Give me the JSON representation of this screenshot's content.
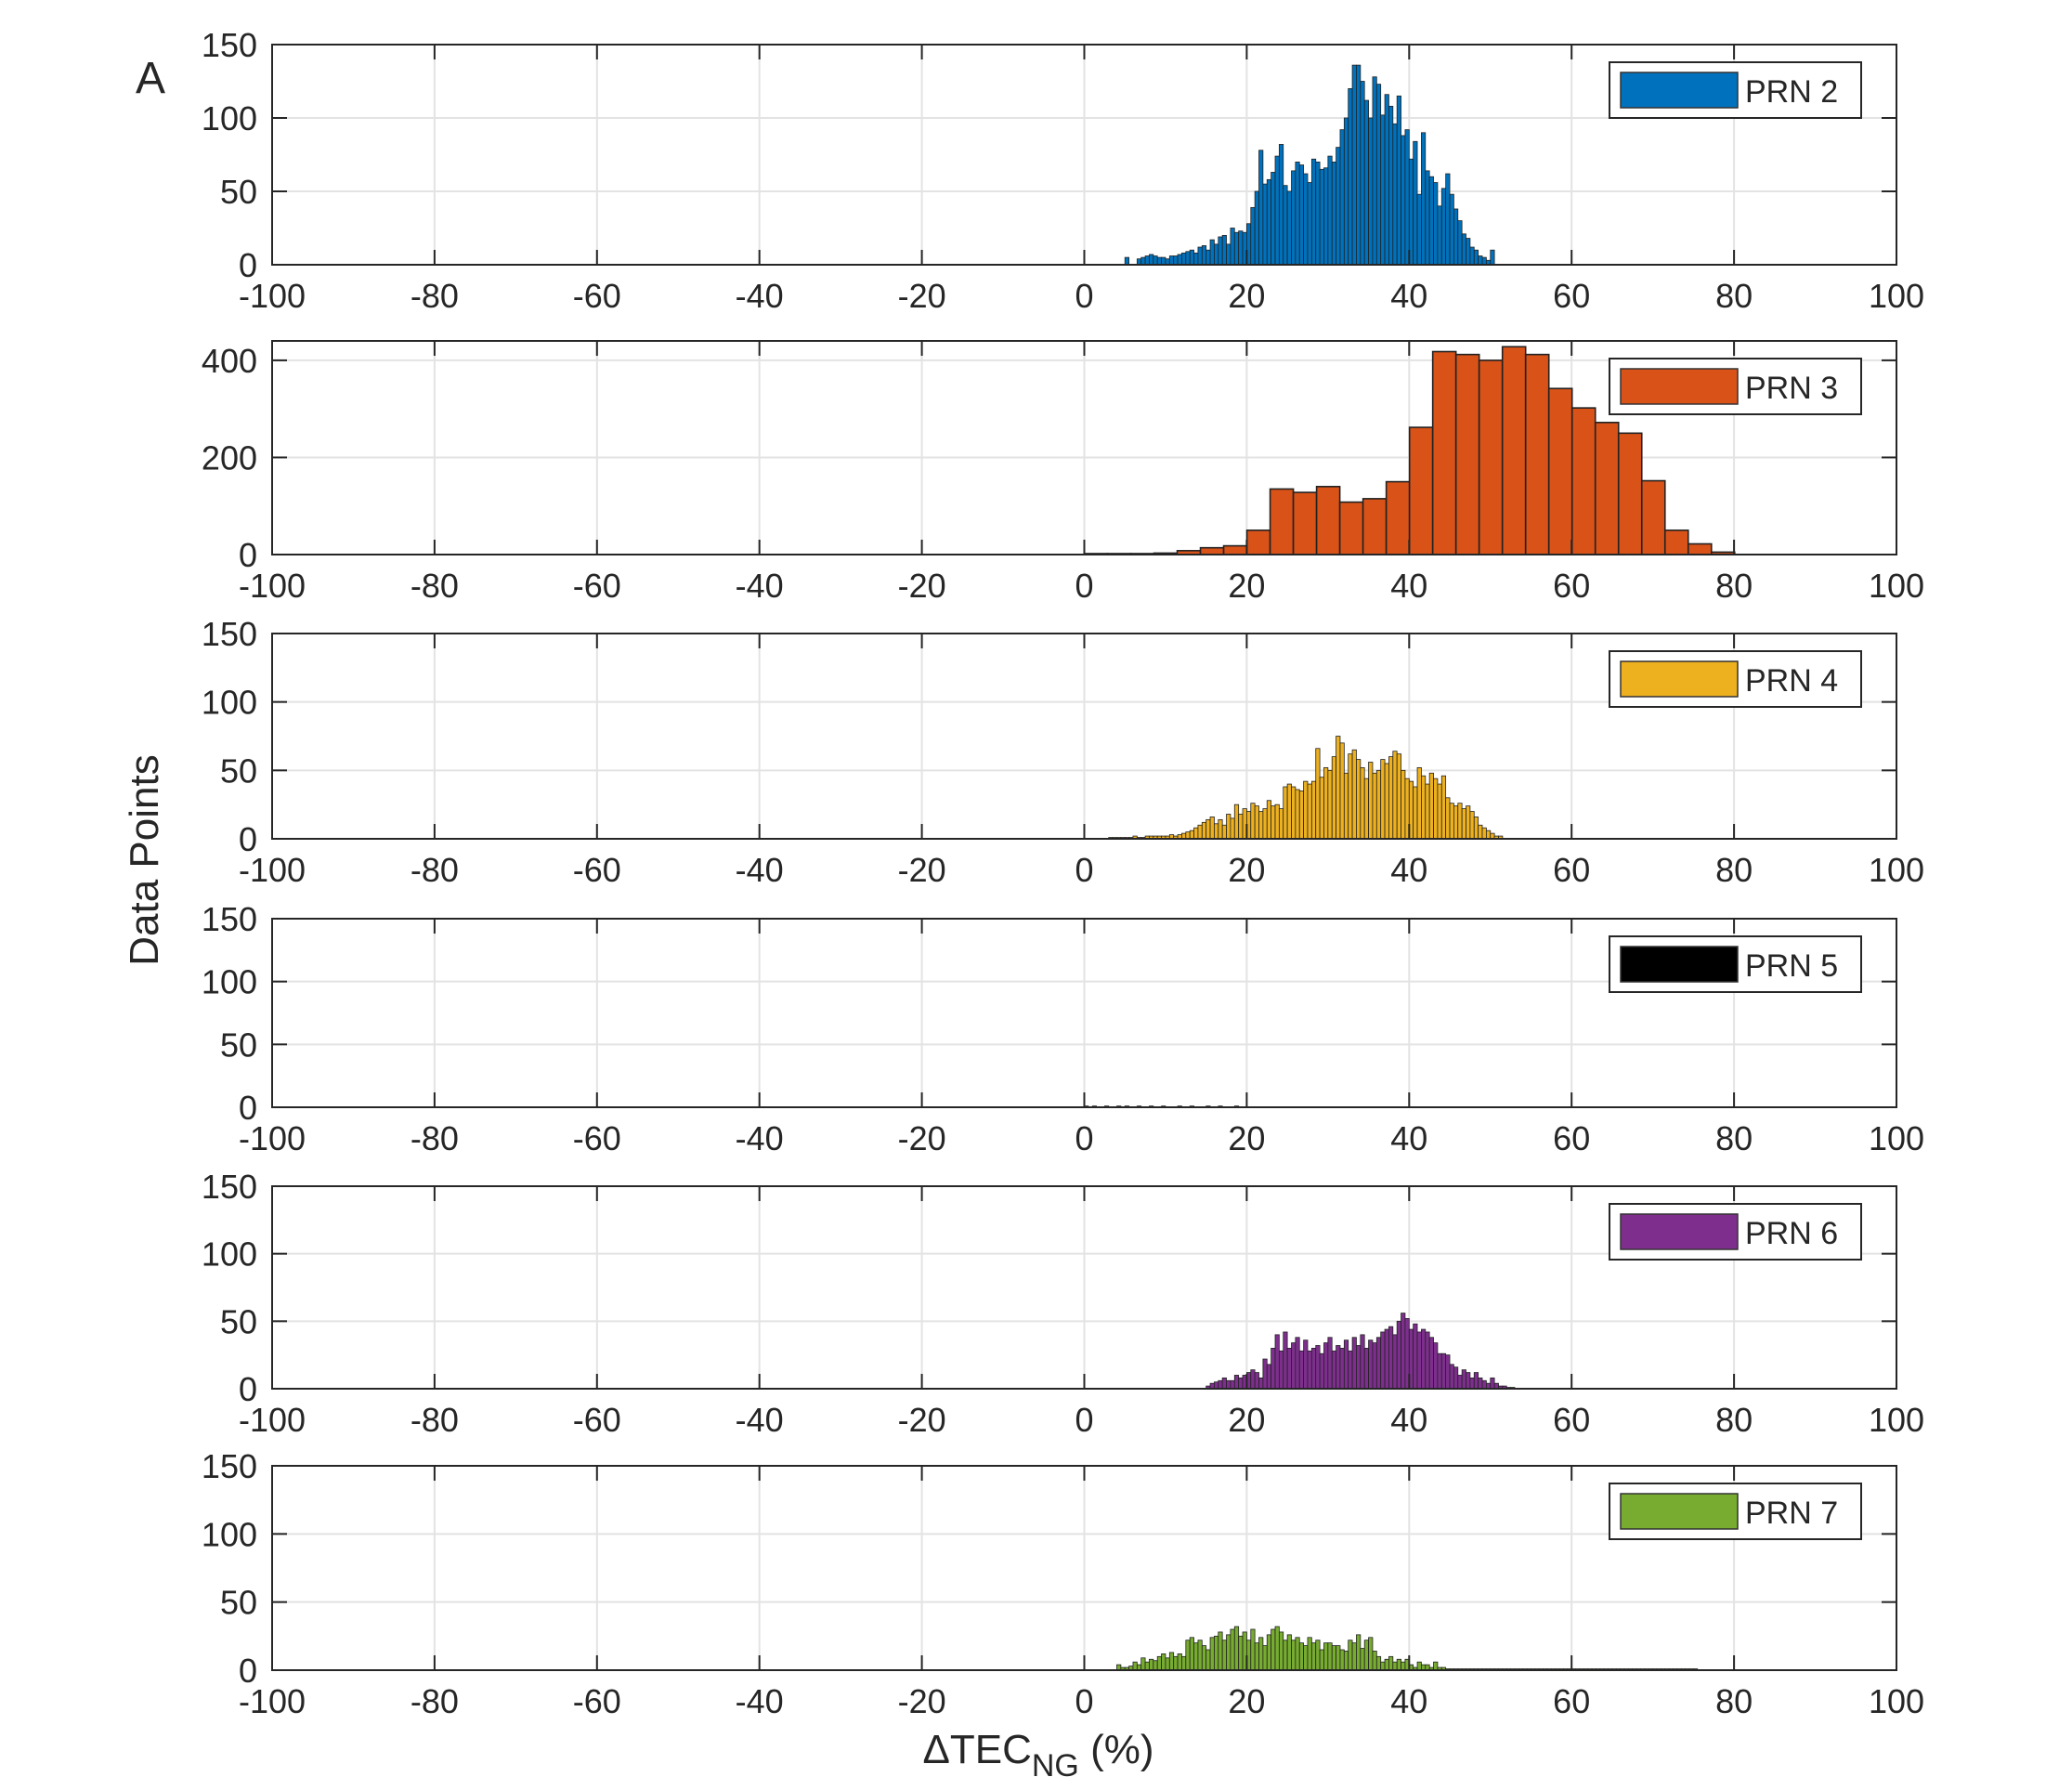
{
  "figure": {
    "panel_label": "A",
    "ylabel": "Data Points",
    "xlabel_main": "ΔTEC",
    "xlabel_sub": "NG",
    "xlabel_unit": " (%)"
  },
  "chart_data": [
    {
      "type": "bar",
      "series_name": "PRN 2",
      "color": "#0072BD",
      "xlim": [
        -100,
        100
      ],
      "ylim": [
        0,
        150
      ],
      "xticks": [
        -100,
        -80,
        -60,
        -40,
        -20,
        0,
        20,
        40,
        60,
        80,
        100
      ],
      "yticks": [
        0,
        50,
        100,
        150
      ],
      "grid": true,
      "legend": "top-right",
      "bin_start": 5,
      "bin_width": 0.5,
      "counts": [
        5,
        0,
        0,
        4,
        5,
        6,
        7,
        6,
        5,
        5,
        4,
        6,
        6,
        7,
        8,
        9,
        10,
        8,
        12,
        13,
        10,
        17,
        14,
        19,
        20,
        14,
        25,
        22,
        23,
        22,
        28,
        39,
        50,
        78,
        55,
        58,
        63,
        74,
        82,
        54,
        50,
        64,
        70,
        68,
        62,
        56,
        72,
        70,
        65,
        66,
        74,
        70,
        80,
        92,
        100,
        120,
        136,
        136,
        125,
        112,
        100,
        128,
        123,
        102,
        116,
        108,
        96,
        115,
        88,
        92,
        72,
        84,
        48,
        90,
        64,
        60,
        56,
        40,
        52,
        62,
        48,
        38,
        30,
        21,
        18,
        12,
        10,
        6,
        5,
        3,
        10
      ]
    },
    {
      "type": "bar",
      "series_name": "PRN 3",
      "color": "#D95319",
      "xlim": [
        -100,
        100
      ],
      "ylim": [
        0,
        440
      ],
      "xticks": [
        -100,
        -80,
        -60,
        -40,
        -20,
        0,
        20,
        40,
        60,
        80,
        100
      ],
      "yticks": [
        0,
        200,
        400
      ],
      "grid": true,
      "legend": "top-right",
      "bin_start": 0,
      "bin_width": 2.86,
      "counts": [
        2,
        2,
        2,
        3,
        8,
        14,
        18,
        50,
        135,
        128,
        140,
        108,
        115,
        150,
        262,
        418,
        412,
        400,
        428,
        412,
        342,
        302,
        272,
        250,
        152,
        50,
        22,
        5
      ]
    },
    {
      "type": "bar",
      "series_name": "PRN 4",
      "color": "#EDB120",
      "xlim": [
        -100,
        100
      ],
      "ylim": [
        0,
        150
      ],
      "xticks": [
        -100,
        -80,
        -60,
        -40,
        -20,
        0,
        20,
        40,
        60,
        80,
        100
      ],
      "yticks": [
        0,
        50,
        100,
        150
      ],
      "grid": true,
      "legend": "top-right",
      "bin_start": 3,
      "bin_width": 0.5,
      "counts": [
        1,
        1,
        1,
        1,
        1,
        1,
        2,
        1,
        1,
        2,
        2,
        2,
        2,
        2,
        2,
        3,
        2,
        3,
        4,
        5,
        6,
        8,
        10,
        12,
        14,
        16,
        11,
        14,
        10,
        18,
        15,
        25,
        18,
        22,
        20,
        26,
        24,
        20,
        22,
        28,
        24,
        25,
        22,
        38,
        40,
        38,
        36,
        35,
        42,
        40,
        42,
        66,
        45,
        52,
        50,
        60,
        75,
        70,
        48,
        62,
        65,
        58,
        52,
        44,
        56,
        48,
        50,
        58,
        55,
        60,
        64,
        62,
        50,
        44,
        42,
        38,
        52,
        46,
        40,
        48,
        44,
        40,
        46,
        30,
        26,
        24,
        26,
        22,
        24,
        20,
        16,
        10,
        8,
        6,
        4,
        2,
        2
      ]
    },
    {
      "type": "bar",
      "series_name": "PRN 5",
      "color": "#000000",
      "xlim": [
        -100,
        100
      ],
      "ylim": [
        0,
        150
      ],
      "xticks": [
        -100,
        -80,
        -60,
        -40,
        -20,
        0,
        20,
        40,
        60,
        80,
        100
      ],
      "yticks": [
        0,
        50,
        100,
        150
      ],
      "grid": true,
      "legend": "top-right",
      "bin_start": 0,
      "bin_width": 0.5,
      "counts": [
        1,
        0,
        1,
        0,
        0,
        1,
        0,
        0,
        1,
        0,
        1,
        0,
        0,
        1,
        0,
        0,
        1,
        0,
        0,
        1,
        0,
        0,
        0,
        1,
        0,
        0,
        1,
        0,
        0,
        0,
        1,
        0,
        0,
        1,
        0,
        0,
        0,
        1,
        0,
        0
      ]
    },
    {
      "type": "bar",
      "series_name": "PRN 6",
      "color": "#7E2F8E",
      "xlim": [
        -100,
        100
      ],
      "ylim": [
        0,
        150
      ],
      "xticks": [
        -100,
        -80,
        -60,
        -40,
        -20,
        0,
        20,
        40,
        60,
        80,
        100
      ],
      "yticks": [
        0,
        50,
        100,
        150
      ],
      "grid": true,
      "legend": "top-right",
      "bin_start": 15,
      "bin_width": 0.5,
      "counts": [
        2,
        4,
        5,
        6,
        8,
        6,
        6,
        10,
        8,
        10,
        12,
        14,
        12,
        8,
        22,
        18,
        30,
        40,
        28,
        42,
        30,
        34,
        38,
        28,
        36,
        28,
        30,
        32,
        26,
        34,
        38,
        28,
        32,
        30,
        36,
        28,
        38,
        32,
        40,
        30,
        36,
        34,
        38,
        42,
        44,
        46,
        40,
        50,
        56,
        52,
        44,
        48,
        42,
        44,
        42,
        38,
        34,
        26,
        26,
        25,
        18,
        16,
        10,
        14,
        12,
        8,
        12,
        8,
        6,
        4,
        8,
        4,
        2,
        2,
        1,
        1
      ]
    },
    {
      "type": "bar",
      "series_name": "PRN 7",
      "color": "#77AC30",
      "xlim": [
        -100,
        100
      ],
      "ylim": [
        0,
        150
      ],
      "xticks": [
        -100,
        -80,
        -60,
        -40,
        -20,
        0,
        20,
        40,
        60,
        80,
        100
      ],
      "yticks": [
        0,
        50,
        100,
        150
      ],
      "grid": true,
      "legend": "top-right",
      "bin_start": 4,
      "bin_width": 0.5,
      "counts": [
        4,
        2,
        2,
        3,
        6,
        4,
        9,
        6,
        8,
        7,
        10,
        12,
        9,
        13,
        10,
        12,
        10,
        22,
        24,
        20,
        22,
        18,
        15,
        24,
        25,
        28,
        22,
        26,
        30,
        32,
        25,
        28,
        22,
        30,
        20,
        24,
        18,
        26,
        30,
        32,
        28,
        22,
        26,
        22,
        24,
        20,
        18,
        24,
        20,
        22,
        15,
        20,
        20,
        18,
        18,
        15,
        14,
        22,
        20,
        26,
        16,
        22,
        24,
        14,
        10,
        6,
        8,
        10,
        6,
        8,
        6,
        8,
        4,
        2,
        6,
        4,
        4,
        2,
        6,
        2,
        2,
        1,
        1,
        1,
        1,
        1,
        1,
        1,
        1,
        1,
        1,
        1,
        1,
        1,
        1,
        1,
        1,
        1,
        1,
        1,
        1,
        1,
        1,
        1,
        1,
        1,
        1,
        1,
        1,
        1,
        1,
        1,
        1,
        1,
        1,
        1,
        1,
        1,
        1,
        1,
        1,
        1,
        1,
        1,
        1,
        1,
        1,
        1,
        1,
        1,
        1,
        1,
        1,
        1,
        1,
        1,
        1,
        1,
        1,
        1,
        1,
        1,
        1
      ]
    }
  ]
}
